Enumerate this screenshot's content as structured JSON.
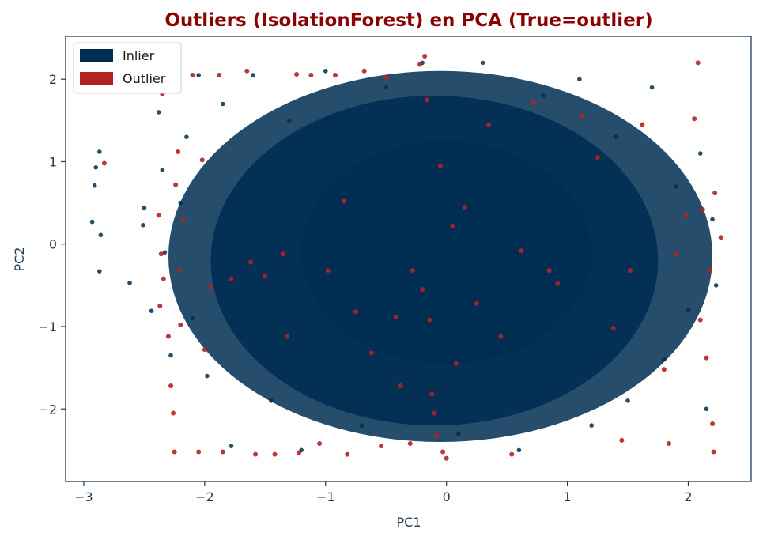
{
  "chart_data": {
    "type": "scatter",
    "title": "Outliers (IsolationForest) en PCA (True=outlier)",
    "xlabel": "PC1",
    "ylabel": "PC2",
    "xlim": [
      -3.15,
      2.52
    ],
    "ylim": [
      -2.88,
      2.52
    ],
    "x_ticks": [
      -3,
      -2,
      -1,
      0,
      1,
      2
    ],
    "y_ticks": [
      -2,
      -1,
      0,
      1,
      2
    ],
    "x_tick_labels": [
      "−3",
      "−2",
      "−1",
      "0",
      "1",
      "2"
    ],
    "y_tick_labels": [
      "−2",
      "−1",
      "0",
      "1",
      "2"
    ],
    "grid": false,
    "legend_position": "top-left",
    "colors": {
      "title": "#8b0000",
      "inlier": "#002e52",
      "outlier": "#b22222",
      "axes": "#1f3b57"
    },
    "series": [
      {
        "name": "Inlier",
        "color": "#002e52",
        "points": [
          [
            -2.9,
            0.93
          ],
          [
            -2.87,
            1.12
          ],
          [
            -2.91,
            0.71
          ],
          [
            -2.93,
            0.27
          ],
          [
            -2.86,
            0.11
          ],
          [
            -2.87,
            -0.33
          ],
          [
            -2.62,
            -0.47
          ],
          [
            -2.5,
            0.44
          ],
          [
            -2.51,
            0.23
          ],
          [
            -2.44,
            -0.81
          ],
          [
            -2.38,
            1.6
          ],
          [
            -2.35,
            0.9
          ],
          [
            -2.33,
            -0.1
          ],
          [
            -2.3,
            1.9
          ],
          [
            -2.28,
            -1.35
          ],
          [
            -2.2,
            0.5
          ],
          [
            -2.15,
            1.3
          ],
          [
            -2.1,
            -0.9
          ],
          [
            -2.05,
            2.05
          ],
          [
            -1.98,
            -1.6
          ],
          [
            -1.9,
            0.1
          ],
          [
            -1.85,
            1.7
          ],
          [
            -1.78,
            -2.45
          ],
          [
            -1.7,
            -1.1
          ],
          [
            -1.6,
            2.05
          ],
          [
            -1.55,
            0.8
          ],
          [
            -1.45,
            -1.9
          ],
          [
            -1.4,
            -0.4
          ],
          [
            -1.3,
            1.5
          ],
          [
            -1.2,
            -2.5
          ],
          [
            -1.1,
            0.3
          ],
          [
            -1.0,
            2.1
          ],
          [
            -0.9,
            -1.3
          ],
          [
            -0.8,
            1.0
          ],
          [
            -0.7,
            -2.2
          ],
          [
            -0.6,
            -0.1
          ],
          [
            -0.5,
            1.9
          ],
          [
            -0.4,
            -1.7
          ],
          [
            -0.3,
            0.6
          ],
          [
            -0.2,
            2.2
          ],
          [
            -0.1,
            -0.9
          ],
          [
            0.0,
            1.4
          ],
          [
            0.1,
            -2.3
          ],
          [
            0.2,
            0.2
          ],
          [
            0.3,
            2.2
          ],
          [
            0.4,
            -1.1
          ],
          [
            0.5,
            1.0
          ],
          [
            0.6,
            -2.5
          ],
          [
            0.7,
            -0.3
          ],
          [
            0.8,
            1.8
          ],
          [
            0.9,
            -1.6
          ],
          [
            1.0,
            0.5
          ],
          [
            1.1,
            2.0
          ],
          [
            1.2,
            -2.2
          ],
          [
            1.3,
            -0.6
          ],
          [
            1.4,
            1.3
          ],
          [
            1.5,
            -1.9
          ],
          [
            1.6,
            0.0
          ],
          [
            1.7,
            1.9
          ],
          [
            1.8,
            -1.4
          ],
          [
            1.9,
            0.7
          ],
          [
            2.0,
            -0.8
          ],
          [
            2.1,
            1.1
          ],
          [
            2.15,
            -2.0
          ],
          [
            2.2,
            0.3
          ],
          [
            2.23,
            -0.5
          ],
          [
            -0.55,
            0.05
          ],
          [
            0.35,
            -0.2
          ],
          [
            -1.25,
            -0.95
          ],
          [
            1.35,
            0.15
          ]
        ]
      },
      {
        "name": "Outlier",
        "color": "#b22222",
        "points": [
          [
            -2.83,
            0.98
          ],
          [
            -2.38,
            0.35
          ],
          [
            -2.36,
            -0.12
          ],
          [
            -2.34,
            -0.42
          ],
          [
            -2.37,
            -0.75
          ],
          [
            -2.35,
            1.82
          ],
          [
            -2.32,
            1.92
          ],
          [
            -2.3,
            -1.12
          ],
          [
            -2.28,
            -1.72
          ],
          [
            -2.26,
            -2.05
          ],
          [
            -2.25,
            -2.52
          ],
          [
            -2.24,
            0.72
          ],
          [
            -2.22,
            1.12
          ],
          [
            -2.21,
            -0.32
          ],
          [
            -2.2,
            -0.98
          ],
          [
            -2.18,
            0.3
          ],
          [
            -2.1,
            2.05
          ],
          [
            -2.05,
            -2.52
          ],
          [
            -2.02,
            1.02
          ],
          [
            -2.0,
            -1.28
          ],
          [
            -1.95,
            -0.52
          ],
          [
            -1.88,
            2.05
          ],
          [
            -1.85,
            -2.52
          ],
          [
            -1.78,
            -0.42
          ],
          [
            -1.65,
            2.1
          ],
          [
            -1.62,
            -0.22
          ],
          [
            -1.58,
            -2.55
          ],
          [
            -1.5,
            -0.38
          ],
          [
            -1.42,
            -2.55
          ],
          [
            -1.35,
            -0.12
          ],
          [
            -1.32,
            -1.12
          ],
          [
            -1.24,
            2.06
          ],
          [
            -1.22,
            -2.53
          ],
          [
            -1.12,
            2.05
          ],
          [
            -1.05,
            -2.42
          ],
          [
            -0.98,
            -0.32
          ],
          [
            -0.92,
            2.05
          ],
          [
            -0.85,
            0.52
          ],
          [
            -0.82,
            -2.55
          ],
          [
            -0.75,
            -0.82
          ],
          [
            -0.68,
            2.1
          ],
          [
            -0.62,
            -1.32
          ],
          [
            -0.54,
            -2.45
          ],
          [
            -0.5,
            2.02
          ],
          [
            -0.42,
            -0.88
          ],
          [
            -0.38,
            -1.72
          ],
          [
            -0.3,
            -2.42
          ],
          [
            -0.28,
            -0.32
          ],
          [
            -0.22,
            2.18
          ],
          [
            -0.2,
            -0.55
          ],
          [
            -0.18,
            2.28
          ],
          [
            -0.16,
            1.75
          ],
          [
            -0.14,
            -0.92
          ],
          [
            -0.12,
            -1.82
          ],
          [
            -0.1,
            -2.05
          ],
          [
            -0.08,
            -2.32
          ],
          [
            -0.05,
            0.95
          ],
          [
            -0.03,
            -2.52
          ],
          [
            0.0,
            -2.6
          ],
          [
            0.05,
            0.22
          ],
          [
            0.08,
            -1.45
          ],
          [
            0.15,
            0.45
          ],
          [
            0.25,
            -0.72
          ],
          [
            0.35,
            1.45
          ],
          [
            0.45,
            -1.12
          ],
          [
            0.54,
            -2.55
          ],
          [
            0.62,
            -0.08
          ],
          [
            0.72,
            1.72
          ],
          [
            0.85,
            -0.32
          ],
          [
            0.92,
            -0.48
          ],
          [
            1.12,
            1.55
          ],
          [
            1.25,
            1.05
          ],
          [
            1.38,
            -1.02
          ],
          [
            1.45,
            -2.38
          ],
          [
            1.52,
            -0.32
          ],
          [
            1.62,
            1.45
          ],
          [
            1.8,
            -1.52
          ],
          [
            1.84,
            -2.42
          ],
          [
            1.9,
            -0.12
          ],
          [
            1.98,
            0.35
          ],
          [
            2.05,
            1.52
          ],
          [
            2.08,
            2.2
          ],
          [
            2.1,
            -0.92
          ],
          [
            2.12,
            0.42
          ],
          [
            2.15,
            -1.38
          ],
          [
            2.18,
            -0.32
          ],
          [
            2.2,
            -2.18
          ],
          [
            2.21,
            -2.52
          ],
          [
            2.22,
            0.62
          ],
          [
            2.27,
            0.08
          ]
        ]
      }
    ]
  }
}
